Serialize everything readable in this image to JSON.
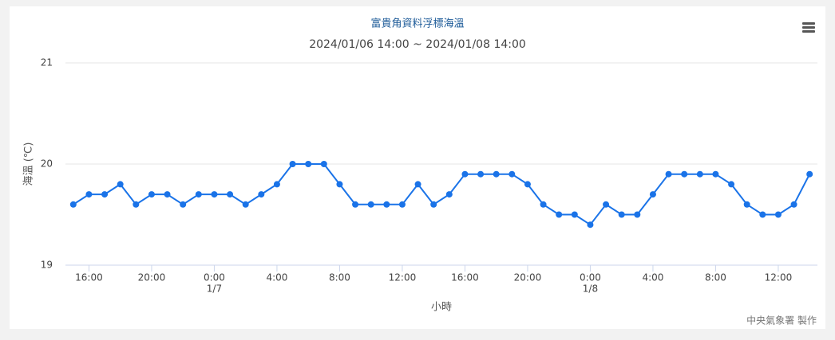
{
  "chart_data": {
    "type": "line",
    "title": "富貴角資料浮標海溫",
    "subtitle": "2024/01/06 14:00 ~ 2024/01/08 14:00",
    "y_label": "海溫 (℃)",
    "x_label": "小時",
    "credit": "中央氣象署 製作",
    "categories": [
      null,
      "16:00",
      null,
      null,
      null,
      "20:00",
      null,
      null,
      null,
      {
        "label": "0:00",
        "date": "1/7"
      },
      null,
      null,
      null,
      "4:00",
      null,
      null,
      null,
      "8:00",
      null,
      null,
      null,
      "12:00",
      null,
      null,
      null,
      "16:00",
      null,
      null,
      null,
      "20:00",
      null,
      null,
      null,
      {
        "label": "0:00",
        "date": "1/8"
      },
      null,
      null,
      null,
      "4:00",
      null,
      null,
      null,
      "8:00",
      null,
      null,
      null,
      "12:00",
      null,
      null
    ],
    "series": [
      {
        "name": "海溫",
        "color": "#1a73e8",
        "values": [
          19.6,
          19.7,
          19.7,
          19.8,
          19.6,
          19.7,
          19.7,
          19.6,
          19.7,
          19.7,
          19.7,
          19.6,
          19.7,
          19.8,
          20.0,
          20.0,
          20.0,
          19.8,
          19.6,
          19.6,
          19.6,
          19.6,
          19.8,
          19.6,
          19.7,
          19.9,
          19.9,
          19.9,
          19.9,
          19.8,
          19.6,
          19.5,
          19.5,
          19.4,
          19.6,
          19.5,
          19.5,
          19.7,
          19.9,
          19.9,
          19.9,
          19.9,
          19.8,
          19.6,
          19.5,
          19.5,
          19.6,
          19.9
        ]
      }
    ],
    "ylim": [
      19,
      21
    ],
    "yticks": [
      19,
      20,
      21
    ],
    "grid": true
  }
}
